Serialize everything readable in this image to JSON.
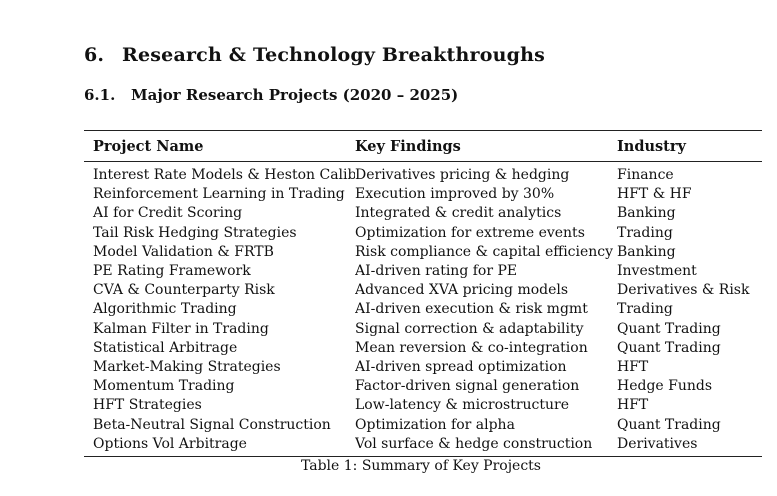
{
  "section": {
    "number": "6.",
    "title": "Research & Technology Breakthroughs"
  },
  "subsection": {
    "number": "6.1.",
    "title": "Major Research Projects (2020 – 2025)"
  },
  "table": {
    "headers": [
      "Project Name",
      "Key Findings",
      "Industry"
    ],
    "rows": [
      [
        "Interest Rate Models & Heston Calib",
        "Derivatives pricing & hedging",
        "Finance"
      ],
      [
        "Reinforcement Learning in Trading",
        "Execution improved by 30%",
        "HFT & HF"
      ],
      [
        "AI for Credit Scoring",
        "Integrated & credit analytics",
        "Banking"
      ],
      [
        "Tail Risk Hedging Strategies",
        "Optimization for extreme events",
        "Trading"
      ],
      [
        "Model Validation & FRTB",
        "Risk compliance & capital efficiency",
        "Banking"
      ],
      [
        "PE Rating Framework",
        "AI-driven rating for PE",
        "Investment"
      ],
      [
        "CVA & Counterparty Risk",
        "Advanced XVA pricing models",
        "Derivatives & Risk"
      ],
      [
        "Algorithmic Trading",
        "AI-driven execution & risk mgmt",
        "Trading"
      ],
      [
        "Kalman Filter in Trading",
        "Signal correction & adaptability",
        "Quant Trading"
      ],
      [
        "Statistical Arbitrage",
        "Mean reversion & co-integration",
        "Quant Trading"
      ],
      [
        "Market-Making Strategies",
        "AI-driven spread optimization",
        "HFT"
      ],
      [
        "Momentum Trading",
        "Factor-driven signal generation",
        "Hedge Funds"
      ],
      [
        "HFT Strategies",
        "Low-latency & microstructure",
        "HFT"
      ],
      [
        "Beta-Neutral Signal Construction",
        "Optimization for alpha",
        "Quant Trading"
      ],
      [
        "Options Vol Arbitrage",
        "Vol surface & hedge construction",
        "Derivatives"
      ]
    ],
    "caption": "Table 1: Summary of Key Projects"
  }
}
